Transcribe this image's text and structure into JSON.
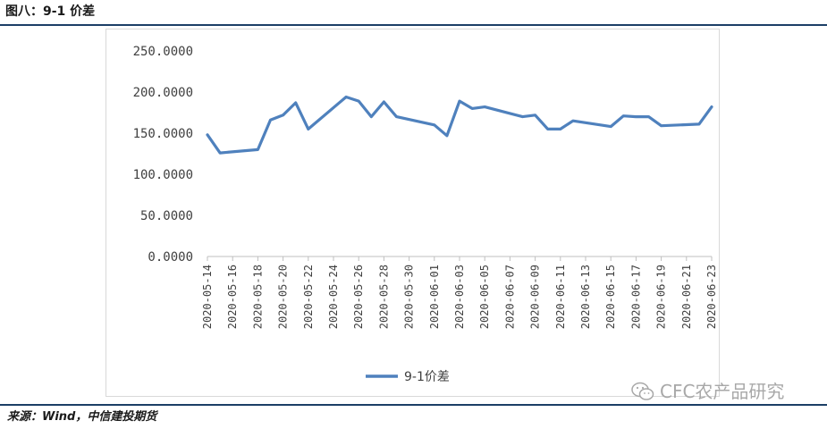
{
  "figure": {
    "title": "图八：9-1 价差",
    "source": "来源：Wind，中信建投期货",
    "watermark": "CFC农产品研究",
    "watermark_icon": "wechat-icon"
  },
  "colors": {
    "series": "#4f81bd",
    "rule": "#1c3f66",
    "axis": "#bfbfbf",
    "text": "#404040"
  },
  "chart_data": {
    "type": "line",
    "title": "",
    "xlabel": "",
    "ylabel": "",
    "ylim": [
      0,
      250
    ],
    "y_ticks": [
      "0.0000",
      "50.0000",
      "100.0000",
      "150.0000",
      "200.0000",
      "250.0000"
    ],
    "x_tick_labels": [
      "2020-05-14",
      "2020-05-16",
      "2020-05-18",
      "2020-05-20",
      "2020-05-22",
      "2020-05-24",
      "2020-05-26",
      "2020-05-28",
      "2020-05-30",
      "2020-06-01",
      "2020-06-03",
      "2020-06-05",
      "2020-06-07",
      "2020-06-09",
      "2020-06-11",
      "2020-06-13",
      "2020-06-15",
      "2020-06-17",
      "2020-06-19",
      "2020-06-21",
      "2020-06-23"
    ],
    "x_start": "2020-05-14",
    "x_end": "2020-06-23",
    "grid": false,
    "legend_position": "bottom",
    "series": [
      {
        "name": "9-1价差",
        "color": "#4f81bd",
        "points": [
          [
            "2020-05-14",
            148
          ],
          [
            "2020-05-15",
            126
          ],
          [
            "2020-05-18",
            130
          ],
          [
            "2020-05-19",
            166
          ],
          [
            "2020-05-20",
            172
          ],
          [
            "2020-05-21",
            187
          ],
          [
            "2020-05-22",
            155
          ],
          [
            "2020-05-25",
            194
          ],
          [
            "2020-05-26",
            189
          ],
          [
            "2020-05-27",
            170
          ],
          [
            "2020-05-28",
            188
          ],
          [
            "2020-05-29",
            170
          ],
          [
            "2020-06-01",
            160
          ],
          [
            "2020-06-02",
            147
          ],
          [
            "2020-06-03",
            189
          ],
          [
            "2020-06-04",
            180
          ],
          [
            "2020-06-05",
            182
          ],
          [
            "2020-06-08",
            170
          ],
          [
            "2020-06-09",
            172
          ],
          [
            "2020-06-10",
            155
          ],
          [
            "2020-06-11",
            155
          ],
          [
            "2020-06-12",
            165
          ],
          [
            "2020-06-15",
            158
          ],
          [
            "2020-06-16",
            171
          ],
          [
            "2020-06-17",
            170
          ],
          [
            "2020-06-18",
            170
          ],
          [
            "2020-06-19",
            159
          ],
          [
            "2020-06-22",
            161
          ],
          [
            "2020-06-23",
            182
          ]
        ]
      }
    ]
  }
}
